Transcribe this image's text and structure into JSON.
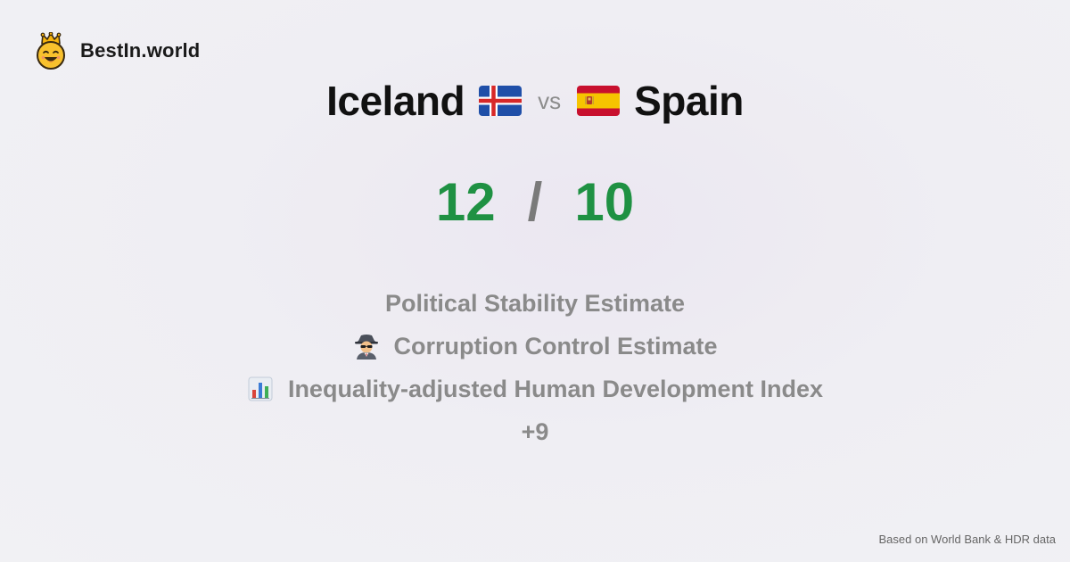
{
  "brand": {
    "name": "BestIn.world",
    "logo_icon": "crowned-smiley-icon"
  },
  "comparison": {
    "left_country": "Iceland",
    "left_flag": "iceland-flag-icon",
    "vs_label": "vs",
    "right_country": "Spain",
    "right_flag": "spain-flag-icon"
  },
  "score": {
    "left": "12",
    "separator": "/",
    "right": "10",
    "color": "#1f9143"
  },
  "metrics": [
    {
      "label": "Political Stability Estimate",
      "icon": ""
    },
    {
      "label": "Corruption Control Estimate",
      "icon": "spy-icon"
    },
    {
      "label": "Inequality-adjusted Human Development Index",
      "icon": "bar-chart-icon"
    }
  ],
  "more_label": "+9",
  "footer": {
    "source": "Based on World Bank & HDR data"
  }
}
